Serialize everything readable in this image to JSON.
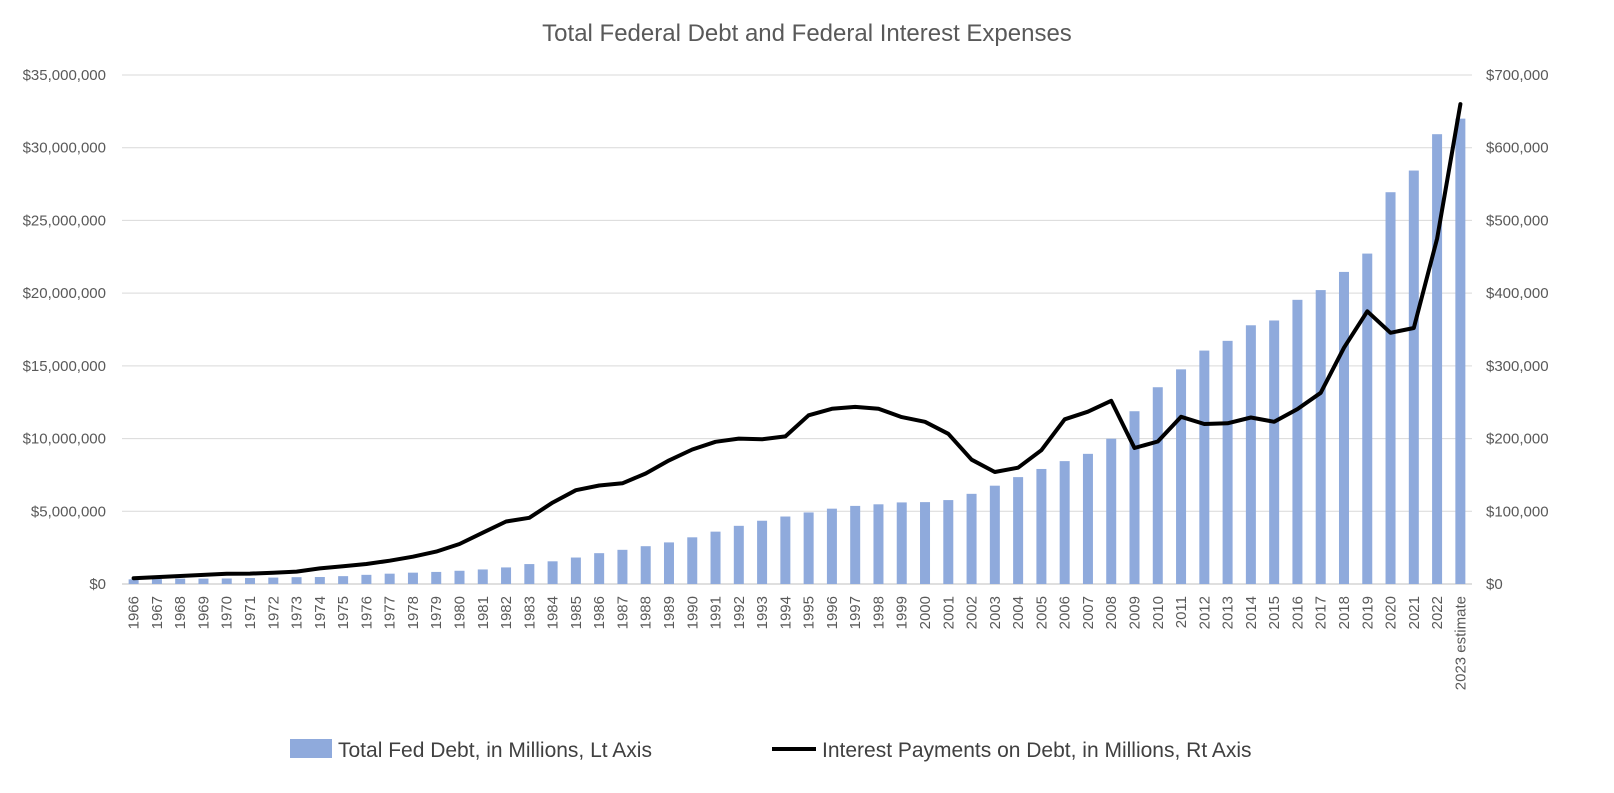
{
  "chart_data": {
    "type": "bar",
    "title": "Total Federal Debt and Federal Interest Expenses",
    "categories": [
      "1966",
      "1967",
      "1968",
      "1969",
      "1970",
      "1971",
      "1972",
      "1973",
      "1974",
      "1975",
      "1976",
      "1977",
      "1978",
      "1979",
      "1980",
      "1981",
      "1982",
      "1983",
      "1984",
      "1985",
      "1986",
      "1987",
      "1988",
      "1989",
      "1990",
      "1991",
      "1992",
      "1993",
      "1994",
      "1995",
      "1996",
      "1997",
      "1998",
      "1999",
      "2000",
      "2001",
      "2002",
      "2003",
      "2004",
      "2005",
      "2006",
      "2007",
      "2008",
      "2009",
      "2010",
      "2011",
      "2012",
      "2013",
      "2014",
      "2015",
      "2016",
      "2017",
      "2018",
      "2019",
      "2020",
      "2021",
      "2022",
      "2023 estimate"
    ],
    "series": [
      {
        "name": "Total Fed Debt, in Millions, Lt Axis",
        "type": "bar",
        "axis": "left",
        "color": "#8faadc",
        "values": [
          320000,
          340000,
          370000,
          370000,
          380000,
          410000,
          440000,
          470000,
          480000,
          540000,
          630000,
          710000,
          780000,
          830000,
          910000,
          1000000,
          1140000,
          1370000,
          1560000,
          1820000,
          2120000,
          2350000,
          2600000,
          2860000,
          3210000,
          3600000,
          4000000,
          4350000,
          4640000,
          4920000,
          5180000,
          5370000,
          5480000,
          5610000,
          5630000,
          5770000,
          6200000,
          6760000,
          7350000,
          7910000,
          8450000,
          8950000,
          9990000,
          11880000,
          13530000,
          14760000,
          16050000,
          16720000,
          17790000,
          18120000,
          19540000,
          20210000,
          21460000,
          22720000,
          26940000,
          28430000,
          30930000,
          32000000
        ]
      },
      {
        "name": "Interest Payments on Debt, in Millions, Rt Axis",
        "type": "line",
        "axis": "right",
        "color": "#000000",
        "values": [
          8000,
          9500,
          11000,
          12500,
          14000,
          14300,
          15500,
          17000,
          21500,
          24500,
          27500,
          32000,
          37500,
          44500,
          55000,
          70500,
          86000,
          91000,
          112000,
          129000,
          135500,
          138500,
          152000,
          170000,
          185000,
          195500,
          200000,
          199000,
          203000,
          232000,
          241000,
          243500,
          241000,
          229500,
          223000,
          206500,
          171000,
          154000,
          160000,
          184000,
          226500,
          237000,
          252000,
          187000,
          196000,
          230000,
          220000,
          221000,
          229000,
          223000,
          240500,
          263000,
          325000,
          375000,
          345500,
          352000,
          475000,
          660000
        ]
      }
    ],
    "y_left": {
      "min": 0,
      "max": 35000000,
      "step": 5000000,
      "tick_labels": [
        "$0",
        "$5,000,000",
        "$10,000,000",
        "$15,000,000",
        "$20,000,000",
        "$25,000,000",
        "$30,000,000",
        "$35,000,000"
      ]
    },
    "y_right": {
      "min": 0,
      "max": 700000,
      "step": 100000,
      "tick_labels": [
        "$0",
        "$100,000",
        "$200,000",
        "$300,000",
        "$400,000",
        "$500,000",
        "$600,000",
        "$700,000"
      ]
    },
    "grid": true,
    "legend_position": "bottom"
  }
}
